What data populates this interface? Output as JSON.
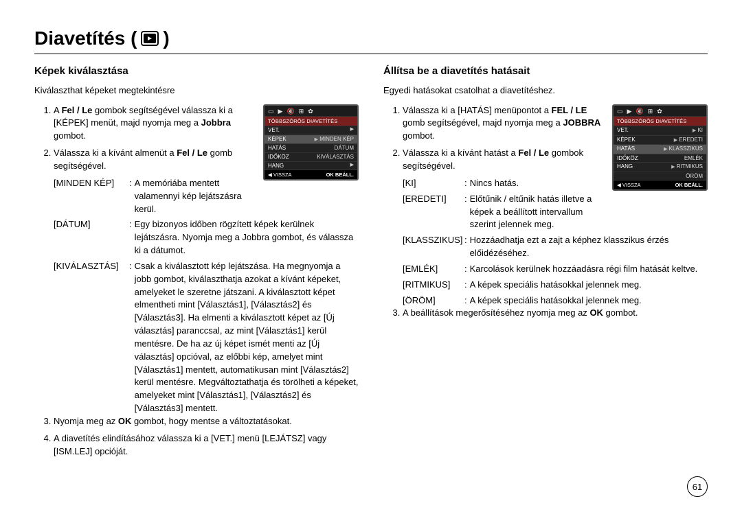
{
  "title": "Diavetítés (",
  "title_suffix": ")",
  "icons": {
    "slideshow": "▶"
  },
  "page_number": "61",
  "left": {
    "heading": "Képek kiválasztása",
    "intro": "Kiválaszthat képeket megtekintésre",
    "steps": {
      "s1": "A <b>Fel / Le</b> gombok segítségével válassza ki a [KÉPEK] menüt, majd nyomja meg a <b>Jobbra</b> gombot.",
      "s2": "Válassza ki a kívánt almenüt a <b>Fel / Le</b> gomb segítségével.",
      "s3": "Nyomja meg az <b>OK</b> gombot, hogy mentse a változtatásokat.",
      "s4": "A diavetítés elindításához válassza ki a [VET.] menü [LEJÁTSZ] vagy [ISM.LEJ] opcióját."
    },
    "terms": [
      {
        "label": "[MINDEN KÉP]",
        "desc": "A memóriába mentett valamennyi kép lejátszásra kerül."
      },
      {
        "label": "[DÁTUM]",
        "desc": "Egy bizonyos időben rögzített képek kerülnek lejátszásra. Nyomja meg a Jobbra gombot, és válassza ki a dátumot."
      },
      {
        "label": "[KIVÁLASZTÁS]",
        "desc": "Csak a kiválasztott kép lejátszása. Ha megnyomja a jobb gombot, kiválaszthatja azokat a kívánt képeket, amelyeket le szeretne játszani. A kiválasztott képet elmentheti mint [Választás1], [Választás2] és [Választás3]. Ha elmenti a kiválasztott képet az [Új választás] paranccsal, az mint [Választás1] kerül mentésre. De ha az új képet ismét menti az [Új választás] opcióval, az előbbi kép, amelyet mint [Választás1] mentett, automatikusan mint [Választás2] kerül mentésre. Megváltoztathatja és törölheti a képeket, amelyeket mint [Választás1], [Választás2] és [Választás3] mentett."
      }
    ],
    "shot": {
      "header": "TÖBBSZÖRÖS DIAVETÍTÉS",
      "rows": [
        {
          "l": "VET.",
          "r": ""
        },
        {
          "l": "KÉPEK",
          "r": "MINDEN KÉP",
          "active": true
        },
        {
          "l": "HATÁS",
          "r": "DÁTUM"
        },
        {
          "l": "IDŐKÖZ",
          "r": "KIVÁLASZTÁS"
        },
        {
          "l": "HANG",
          "r": ""
        }
      ],
      "footer_back": "◀  VISSZA",
      "footer_ok": "OK  BEÁLL."
    }
  },
  "right": {
    "heading": "Állítsa be a diavetítés hatásait",
    "intro": "Egyedi hatásokat csatolhat a diavetítéshez.",
    "steps": {
      "s1": "Válassza ki a [HATÁS] menüpontot a <b>FEL / LE</b> gomb segítségével, majd nyomja meg a <b>JOBBRA</b> gombot.",
      "s2": "Válassza ki a kívánt hatást a <b>Fel / Le</b> gombok segítségével.",
      "s3": "A beállítások megerősítéséhez nyomja meg az <b>OK</b> gombot."
    },
    "terms": [
      {
        "label": "[KI]",
        "desc": "Nincs hatás."
      },
      {
        "label": "[EREDETI]",
        "desc": "Előtűnik / eltűnik hatás illetve a képek a beállított intervallum szerint jelennek meg."
      },
      {
        "label": "[KLASSZIKUS]",
        "desc": "Hozzáadhatja ezt a zajt a képhez klasszikus érzés előidézéséhez."
      },
      {
        "label": "[EMLÉK]",
        "desc": "Karcolások kerülnek hozzáadásra régi film hatását keltve."
      },
      {
        "label": "[RITMIKUS]",
        "desc": "A képek speciális hatásokkal jelennek meg."
      },
      {
        "label": "[ÖRÖM]",
        "desc": "A képek speciális hatásokkal jelennek meg."
      }
    ],
    "shot": {
      "header": "TÖBBSZÖRÖS DIAVETÍTÉS",
      "rows": [
        {
          "l": "VET.",
          "r": "KI"
        },
        {
          "l": "KÉPEK",
          "r": "EREDETI"
        },
        {
          "l": "HATÁS",
          "r": "KLASSZIKUS",
          "active": true
        },
        {
          "l": "IDŐKÖZ",
          "r": "EMLÉK"
        },
        {
          "l": "HANG",
          "r": "RITMIKUS"
        },
        {
          "l": "",
          "r": "ÖRÖM"
        }
      ],
      "footer_back": "◀  VISSZA",
      "footer_ok": "OK  BEÁLL."
    }
  }
}
